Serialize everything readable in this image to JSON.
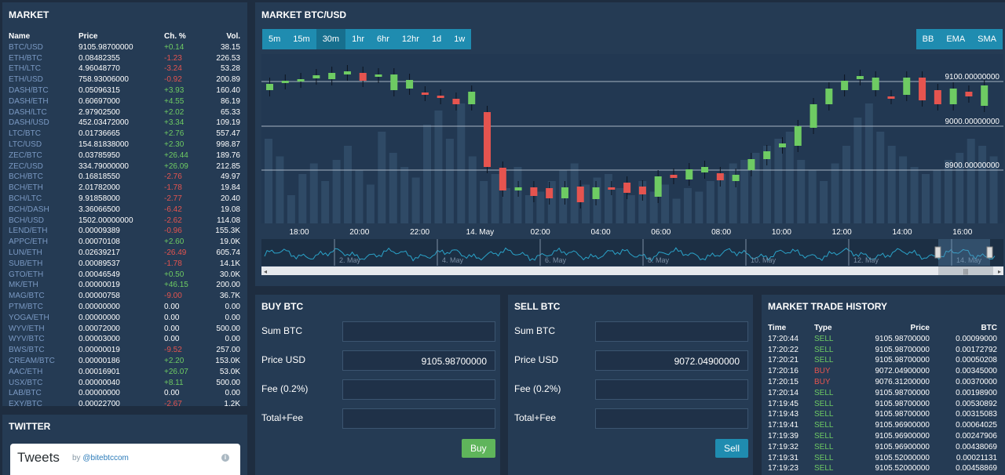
{
  "market": {
    "title": "MARKET",
    "headers": {
      "name": "Name",
      "price": "Price",
      "change": "Ch. %",
      "vol": "Vol."
    },
    "rows": [
      {
        "name": "BTC/USD",
        "price": "9105.98700000",
        "change": "+0.14",
        "vol": "38.15",
        "dir": "pos"
      },
      {
        "name": "ETH/BTC",
        "price": "0.08482355",
        "change": "-1.23",
        "vol": "226.53",
        "dir": "neg"
      },
      {
        "name": "ETH/LTC",
        "price": "4.96048770",
        "change": "-3.24",
        "vol": "53.28",
        "dir": "neg"
      },
      {
        "name": "ETH/USD",
        "price": "758.93006000",
        "change": "-0.92",
        "vol": "200.89",
        "dir": "neg"
      },
      {
        "name": "DASH/BTC",
        "price": "0.05096315",
        "change": "+3.93",
        "vol": "160.40",
        "dir": "pos"
      },
      {
        "name": "DASH/ETH",
        "price": "0.60697000",
        "change": "+4.55",
        "vol": "86.19",
        "dir": "pos"
      },
      {
        "name": "DASH/LTC",
        "price": "2.97902500",
        "change": "+2.02",
        "vol": "65.33",
        "dir": "pos"
      },
      {
        "name": "DASH/USD",
        "price": "452.03472000",
        "change": "+3.34",
        "vol": "109.19",
        "dir": "pos"
      },
      {
        "name": "LTC/BTC",
        "price": "0.01736665",
        "change": "+2.76",
        "vol": "557.47",
        "dir": "pos"
      },
      {
        "name": "LTC/USD",
        "price": "154.81838000",
        "change": "+2.30",
        "vol": "998.87",
        "dir": "pos"
      },
      {
        "name": "ZEC/BTC",
        "price": "0.03785950",
        "change": "+26.44",
        "vol": "189.76",
        "dir": "pos"
      },
      {
        "name": "ZEC/USD",
        "price": "334.79000000",
        "change": "+26.09",
        "vol": "212.85",
        "dir": "pos"
      },
      {
        "name": "BCH/BTC",
        "price": "0.16818550",
        "change": "-2.76",
        "vol": "49.97",
        "dir": "neg"
      },
      {
        "name": "BCH/ETH",
        "price": "2.01782000",
        "change": "-1.78",
        "vol": "19.84",
        "dir": "neg"
      },
      {
        "name": "BCH/LTC",
        "price": "9.91858000",
        "change": "-2.77",
        "vol": "20.40",
        "dir": "neg"
      },
      {
        "name": "BCH/DASH",
        "price": "3.36066500",
        "change": "-6.42",
        "vol": "19.08",
        "dir": "neg"
      },
      {
        "name": "BCH/USD",
        "price": "1502.00000000",
        "change": "-2.62",
        "vol": "114.08",
        "dir": "neg"
      },
      {
        "name": "LEND/ETH",
        "price": "0.00009389",
        "change": "-0.96",
        "vol": "155.3K",
        "dir": "neg"
      },
      {
        "name": "APPC/ETH",
        "price": "0.00070108",
        "change": "+2.60",
        "vol": "19.0K",
        "dir": "pos"
      },
      {
        "name": "LUN/ETH",
        "price": "0.02639217",
        "change": "-26.49",
        "vol": "605.74",
        "dir": "neg"
      },
      {
        "name": "SUB/ETH",
        "price": "0.00089537",
        "change": "-1.78",
        "vol": "14.1K",
        "dir": "neg"
      },
      {
        "name": "GTO/ETH",
        "price": "0.00046549",
        "change": "+0.50",
        "vol": "30.0K",
        "dir": "pos"
      },
      {
        "name": "MK/ETH",
        "price": "0.00000019",
        "change": "+46.15",
        "vol": "200.00",
        "dir": "pos"
      },
      {
        "name": "MAG/BTC",
        "price": "0.00000758",
        "change": "-9.00",
        "vol": "36.7K",
        "dir": "neg"
      },
      {
        "name": "PTM/BTC",
        "price": "0.00000000",
        "change": "0.00",
        "vol": "0.00",
        "dir": "zero"
      },
      {
        "name": "YOGA/ETH",
        "price": "0.00000000",
        "change": "0.00",
        "vol": "0.00",
        "dir": "zero"
      },
      {
        "name": "WYV/ETH",
        "price": "0.00072000",
        "change": "0.00",
        "vol": "500.00",
        "dir": "zero"
      },
      {
        "name": "WYV/BTC",
        "price": "0.00003000",
        "change": "0.00",
        "vol": "0.00",
        "dir": "zero"
      },
      {
        "name": "BWS/BTC",
        "price": "0.00000019",
        "change": "-9.52",
        "vol": "257.00",
        "dir": "neg"
      },
      {
        "name": "CREAM/BTC",
        "price": "0.00000186",
        "change": "+2.20",
        "vol": "153.0K",
        "dir": "pos"
      },
      {
        "name": "AAC/ETH",
        "price": "0.00016901",
        "change": "+26.07",
        "vol": "53.0K",
        "dir": "pos"
      },
      {
        "name": "USX/BTC",
        "price": "0.00000040",
        "change": "+8.11",
        "vol": "500.00",
        "dir": "pos"
      },
      {
        "name": "LAB/BTC",
        "price": "0.00000000",
        "change": "0.00",
        "vol": "0.00",
        "dir": "zero"
      },
      {
        "name": "EXY/BTC",
        "price": "0.00022700",
        "change": "-2.67",
        "vol": "1.2K",
        "dir": "neg"
      }
    ]
  },
  "twitter": {
    "title": "TWITTER",
    "widget_title": "Tweets",
    "by": "by",
    "handle": "@bitebtccom",
    "info_glyph": "i"
  },
  "chart": {
    "title": "MARKET BTC/USD",
    "timeframes": [
      "5m",
      "15m",
      "30m",
      "1hr",
      "6hr",
      "12hr",
      "1d",
      "1w"
    ],
    "active_timeframe": "30m",
    "indicators": [
      "BB",
      "EMA",
      "SMA"
    ],
    "price_levels": [
      "9100.00000000",
      "9000.00000000",
      "8900.00000000"
    ],
    "time_labels": [
      "18:00",
      "20:00",
      "22:00",
      "14. May",
      "02:00",
      "04:00",
      "06:00",
      "08:00",
      "10:00",
      "12:00",
      "14:00",
      "16:00"
    ],
    "navigator_labels": [
      "2. May",
      "4. May",
      "6. May",
      "8. May",
      "10. May",
      "12. May",
      "14. May"
    ],
    "scroll_grip": "|||",
    "scroll_left": "◂",
    "scroll_right": "▸"
  },
  "buy": {
    "title": "BUY BTC",
    "fields": [
      {
        "label": "Sum BTC",
        "value": ""
      },
      {
        "label": "Price USD",
        "value": "9105.98700000"
      },
      {
        "label": "Fee (0.2%)",
        "value": ""
      },
      {
        "label": "Total+Fee",
        "value": ""
      }
    ],
    "button": "Buy"
  },
  "sell": {
    "title": "SELL BTC",
    "fields": [
      {
        "label": "Sum BTC",
        "value": ""
      },
      {
        "label": "Price USD",
        "value": "9072.04900000"
      },
      {
        "label": "Fee (0.2%)",
        "value": ""
      },
      {
        "label": "Total+Fee",
        "value": ""
      }
    ],
    "button": "Sell"
  },
  "history": {
    "title": "MARKET TRADE HISTORY",
    "headers": {
      "time": "Time",
      "type": "Type",
      "price": "Price",
      "amount": "BTC"
    },
    "rows": [
      {
        "time": "17:20:44",
        "type": "SELL",
        "price": "9105.98700000",
        "amount": "0.00099000"
      },
      {
        "time": "17:20:22",
        "type": "SELL",
        "price": "9105.98700000",
        "amount": "0.00172792"
      },
      {
        "time": "17:20:21",
        "type": "SELL",
        "price": "9105.98700000",
        "amount": "0.00050208"
      },
      {
        "time": "17:20:16",
        "type": "BUY",
        "price": "9072.04900000",
        "amount": "0.00345000"
      },
      {
        "time": "17:20:15",
        "type": "BUY",
        "price": "9076.31200000",
        "amount": "0.00370000"
      },
      {
        "time": "17:20:14",
        "type": "SELL",
        "price": "9105.98700000",
        "amount": "0.00198900"
      },
      {
        "time": "17:19:45",
        "type": "SELL",
        "price": "9105.98700000",
        "amount": "0.00530892"
      },
      {
        "time": "17:19:43",
        "type": "SELL",
        "price": "9105.98700000",
        "amount": "0.00315083"
      },
      {
        "time": "17:19:41",
        "type": "SELL",
        "price": "9105.96900000",
        "amount": "0.00064025"
      },
      {
        "time": "17:19:39",
        "type": "SELL",
        "price": "9105.96900000",
        "amount": "0.00247906"
      },
      {
        "time": "17:19:32",
        "type": "SELL",
        "price": "9105.96900000",
        "amount": "0.00438069"
      },
      {
        "time": "17:19:31",
        "type": "SELL",
        "price": "9105.52000000",
        "amount": "0.00021131"
      },
      {
        "time": "17:19:23",
        "type": "SELL",
        "price": "9105.52000000",
        "amount": "0.00458869"
      }
    ]
  },
  "colors": {
    "background": "#1e2d40",
    "panel": "#253b54",
    "up": "#6ecb63",
    "down": "#e5544f",
    "accent": "#1f8cb0",
    "volume": "#2f4a66"
  }
}
